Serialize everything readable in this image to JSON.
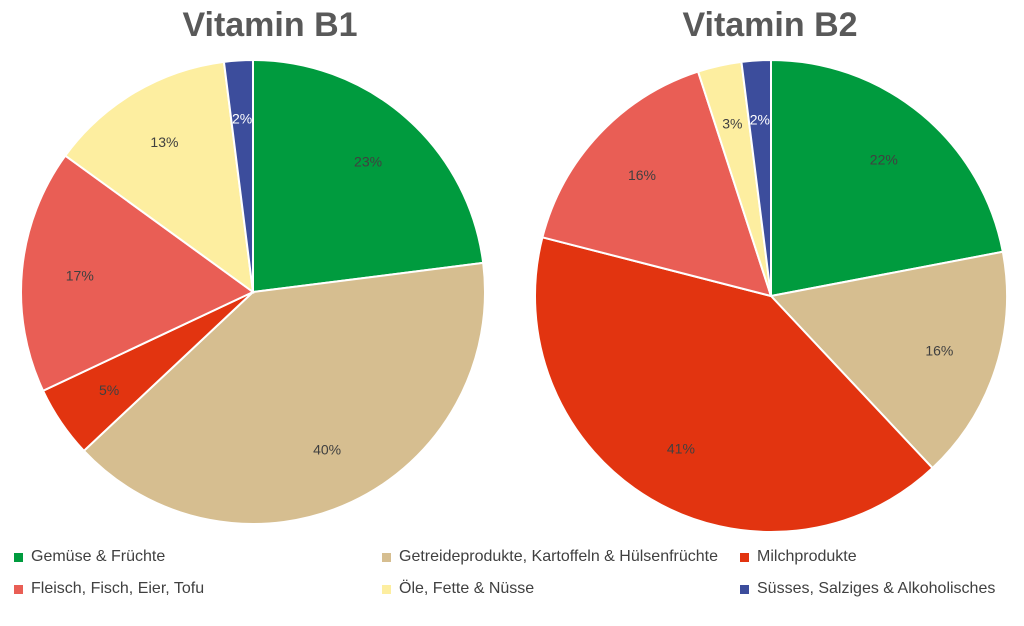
{
  "chart_data": {
    "type": "pie",
    "categories": [
      "Gemüse & Früchte",
      "Getreideprodukte, Kartoffeln & Hülsenfrüchte",
      "Milchprodukte",
      "Fleisch, Fisch, Eier, Tofu",
      "Öle, Fette & Nüsse",
      "Süsses, Salziges & Alkoholisches"
    ],
    "colors": [
      "#009b3e",
      "#d6be90",
      "#e23410",
      "#e95e55",
      "#fdeea0",
      "#3c4d9c"
    ],
    "charts": [
      {
        "title": "Vitamin B1",
        "values": [
          23,
          40,
          5,
          17,
          13,
          2
        ],
        "labels": [
          "23%",
          "40%",
          "5%",
          "17%",
          "13%",
          "2%"
        ]
      },
      {
        "title": "Vitamin B2",
        "values": [
          22,
          16,
          41,
          16,
          3,
          2
        ],
        "labels": [
          "22%",
          "16%",
          "41%",
          "16%",
          "3%",
          "2%"
        ]
      }
    ],
    "legend": "bottom"
  }
}
